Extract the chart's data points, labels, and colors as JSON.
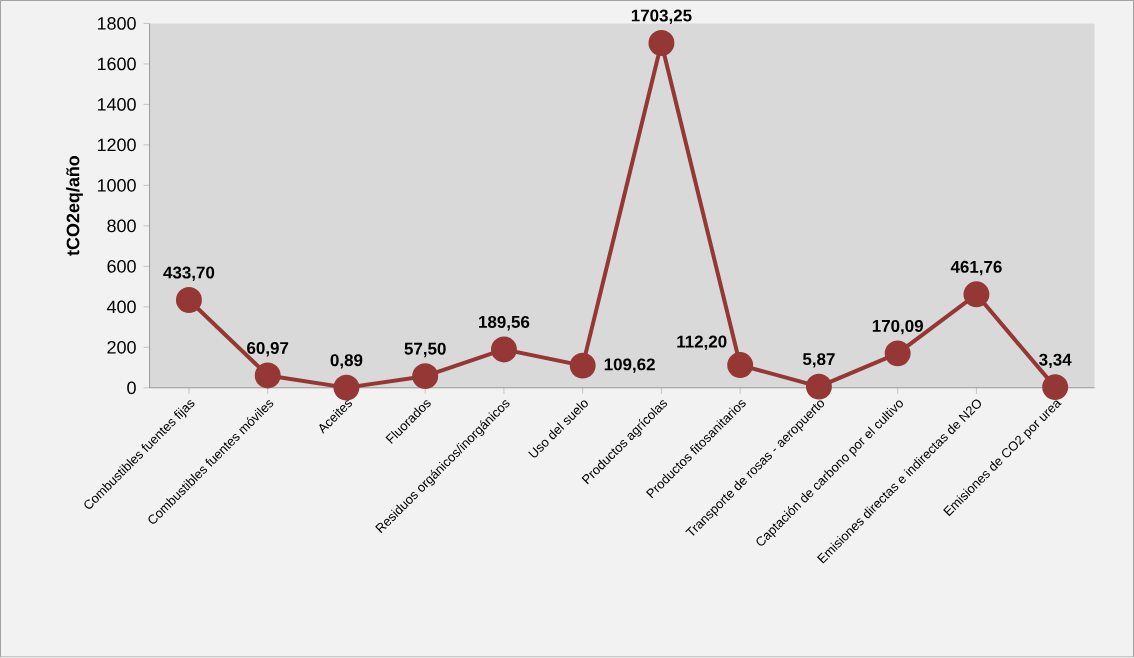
{
  "chart_data": {
    "type": "line",
    "ylabel": "tCO2eq/año",
    "categories": [
      "Combustibles  fuentes fijas",
      "Combustibles fuentes móviles",
      "Aceites",
      "Fluorados",
      "Residuos orgánicos/inorgánicos",
      "Uso del suelo",
      "Productos agrícolas",
      "Productos fitosanitarios",
      "Transporte de rosas - aeropuerto",
      "Captación de carbono por el cultivo",
      "Emisiones directas e indirectas de N2O",
      "Emisiones de CO2 por urea"
    ],
    "values": [
      433.7,
      60.97,
      0.89,
      57.5,
      189.56,
      109.62,
      1703.25,
      112.2,
      5.87,
      170.09,
      461.76,
      3.34
    ],
    "value_labels": [
      "433,70",
      "60,97",
      "0,89",
      "57,50",
      "189,56",
      "109,62",
      "1703,25",
      "112,20",
      "5,87",
      "170,09",
      "461,76",
      "3,34"
    ],
    "color": "#953735",
    "marker": "circle",
    "line_style": "solid",
    "ylim": [
      0,
      1800
    ],
    "yticks": [
      0,
      200,
      400,
      600,
      800,
      1000,
      1200,
      1400,
      1600,
      1800
    ]
  }
}
